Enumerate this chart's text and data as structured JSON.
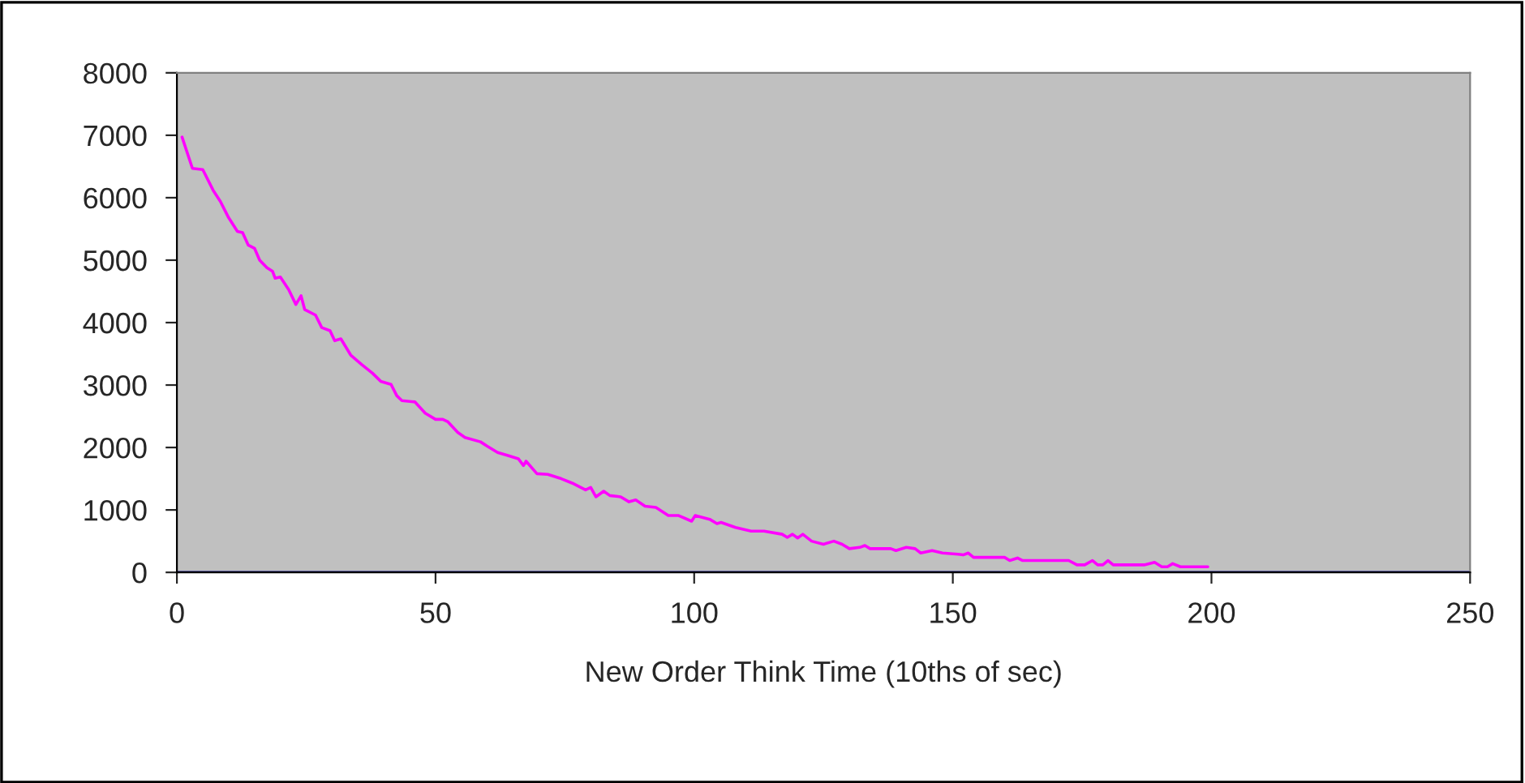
{
  "chart_data": {
    "type": "line",
    "xlabel": "New Order Think Time (10ths of sec)",
    "x": [
      1,
      3,
      5,
      7,
      8.4,
      10,
      11.7,
      12.7,
      13.8,
      15,
      16,
      17.4,
      18.5,
      19,
      20,
      21.6,
      23,
      24,
      24.7,
      26.8,
      28,
      29.6,
      30.5,
      31.7,
      33.6,
      35.7,
      37.8,
      39.4,
      41.4,
      42.5,
      43.5,
      46,
      48,
      50,
      51.4,
      52.4,
      54.3,
      55.7,
      58.7,
      60,
      62,
      64,
      66,
      67,
      67.5,
      69.6,
      71.7,
      74.3,
      76.4,
      79,
      80,
      81,
      82.5,
      83.7,
      85.8,
      87.4,
      88.7,
      90.5,
      92.6,
      95,
      97,
      99.5,
      100.2,
      103,
      104.4,
      105.2,
      108,
      111,
      113.5,
      117,
      118,
      119,
      120,
      121,
      122.7,
      125,
      127,
      128.6,
      130,
      132,
      133,
      134,
      138,
      139,
      141,
      142.7,
      143.8,
      146,
      148,
      151,
      152,
      153,
      154,
      160,
      161,
      162.5,
      163.5,
      172.4,
      174,
      175.5,
      177,
      178,
      179,
      180,
      181,
      187,
      189,
      190.4,
      191.5,
      192.5,
      194,
      199.3
    ],
    "series": [
      {
        "color": "#ff00ff",
        "values": [
          6970,
          6470,
          6450,
          6120,
          5940,
          5680,
          5460,
          5440,
          5240,
          5190,
          5000,
          4880,
          4820,
          4710,
          4730,
          4530,
          4290,
          4430,
          4210,
          4120,
          3920,
          3870,
          3710,
          3740,
          3480,
          3330,
          3190,
          3060,
          3010,
          2830,
          2750,
          2730,
          2550,
          2450,
          2450,
          2410,
          2240,
          2160,
          2090,
          2020,
          1920,
          1870,
          1820,
          1710,
          1780,
          1580,
          1570,
          1500,
          1430,
          1320,
          1360,
          1210,
          1300,
          1230,
          1210,
          1130,
          1160,
          1060,
          1040,
          910,
          910,
          820,
          910,
          850,
          780,
          800,
          720,
          660,
          660,
          610,
          560,
          610,
          550,
          610,
          500,
          450,
          500,
          450,
          380,
          400,
          430,
          380,
          380,
          350,
          400,
          380,
          310,
          350,
          310,
          290,
          280,
          310,
          240,
          240,
          190,
          230,
          190,
          190,
          120,
          120,
          190,
          120,
          120,
          190,
          120,
          120,
          160,
          90,
          90,
          140,
          90,
          90
        ]
      }
    ],
    "xlim": [
      0,
      250
    ],
    "xticks": [
      0,
      50,
      100,
      150,
      200,
      250
    ],
    "ylim": [
      0,
      8000
    ],
    "yticks": [
      0,
      1000,
      2000,
      3000,
      4000,
      5000,
      6000,
      7000,
      8000
    ],
    "grid": false,
    "legend": false,
    "marker": "none",
    "line_style": "solid"
  }
}
